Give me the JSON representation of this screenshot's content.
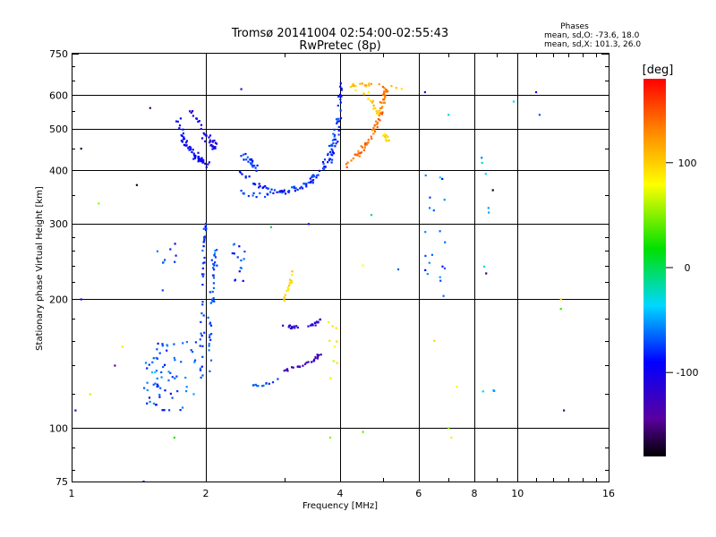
{
  "chart_data": {
    "type": "scatter",
    "title": "Tromsø 20141004 02:54:00-02:55:43",
    "subtitle": "RwPretec (8p)",
    "xlabel": "Frequency [MHz]",
    "ylabel": "Stationary phase Virtual Height [km]",
    "x_scale": "log",
    "y_scale": "log",
    "xlim": [
      1,
      16
    ],
    "ylim": [
      75,
      750
    ],
    "x_ticks": [
      1,
      2,
      4,
      6,
      8,
      10,
      16
    ],
    "x_tick_labels": [
      "1",
      "2",
      "4",
      "6",
      "8",
      "10",
      "16"
    ],
    "y_ticks": [
      75,
      100,
      200,
      300,
      400,
      500,
      600,
      750
    ],
    "y_tick_labels": [
      "75",
      "100",
      "200",
      "300",
      "400",
      "500",
      "600",
      "750"
    ],
    "x_grid_major": [
      2,
      4,
      6,
      8,
      10
    ],
    "y_grid_major": [
      100,
      200,
      300,
      400,
      500,
      600
    ],
    "grid": true,
    "phases_box": {
      "title": "Phases",
      "line_o": "mean, sd,O: -73.6, 18.0",
      "line_x": "mean, sd,X: 101.3, 26.0"
    },
    "colorbar": {
      "label": "[deg]",
      "range": [
        -180,
        180
      ],
      "ticks": [
        100,
        0,
        -100
      ],
      "tick_labels": [
        "100",
        "0",
        "-100"
      ],
      "colormap": "rainbow"
    },
    "clusters": [
      {
        "kind": "curve",
        "pts": [
          [
            1.72,
            550
          ],
          [
            1.76,
            490
          ],
          [
            1.8,
            460
          ],
          [
            1.86,
            440
          ],
          [
            1.92,
            430
          ],
          [
            1.97,
            420
          ],
          [
            2.02,
            410
          ]
        ],
        "phase": -95,
        "n": 60,
        "jx": 0.02,
        "jy": 0.03
      },
      {
        "kind": "curve",
        "pts": [
          [
            1.85,
            560
          ],
          [
            1.92,
            520
          ],
          [
            1.98,
            490
          ],
          [
            2.05,
            470
          ],
          [
            2.1,
            450
          ]
        ],
        "phase": -100,
        "n": 35,
        "jx": 0.015,
        "jy": 0.04
      },
      {
        "kind": "curve",
        "pts": [
          [
            2.4,
            400
          ],
          [
            2.6,
            370
          ],
          [
            2.9,
            355
          ],
          [
            3.2,
            360
          ],
          [
            3.5,
            380
          ],
          [
            3.8,
            420
          ],
          [
            3.95,
            480
          ],
          [
            4.0,
            560
          ],
          [
            4.02,
            640
          ]
        ],
        "phase": -85,
        "n": 90,
        "jx": 0.015,
        "jy": 0.02
      },
      {
        "kind": "curve",
        "pts": [
          [
            2.4,
            355
          ],
          [
            2.7,
            350
          ],
          [
            3.0,
            355
          ],
          [
            3.3,
            370
          ],
          [
            3.6,
            400
          ],
          [
            3.85,
            460
          ],
          [
            3.95,
            540
          ]
        ],
        "phase": -75,
        "n": 60,
        "jx": 0.015,
        "jy": 0.02
      },
      {
        "kind": "curve",
        "pts": [
          [
            2.4,
            440
          ],
          [
            2.5,
            420
          ],
          [
            2.6,
            405
          ]
        ],
        "phase": -80,
        "n": 20,
        "jx": 0.02,
        "jy": 0.04
      },
      {
        "kind": "curve",
        "pts": [
          [
            4.1,
            410
          ],
          [
            4.4,
            440
          ],
          [
            4.7,
            480
          ],
          [
            4.9,
            530
          ],
          [
            5.0,
            580
          ],
          [
            5.05,
            630
          ]
        ],
        "phase": 140,
        "n": 70,
        "jx": 0.02,
        "jy": 0.02
      },
      {
        "kind": "curve",
        "pts": [
          [
            4.3,
            620
          ],
          [
            4.6,
            600
          ],
          [
            4.8,
            560
          ],
          [
            5.0,
            500
          ],
          [
            5.1,
            460
          ]
        ],
        "phase": 95,
        "n": 30,
        "jx": 0.02,
        "jy": 0.03
      },
      {
        "kind": "curve",
        "pts": [
          [
            4.2,
            630
          ],
          [
            4.4,
            640
          ],
          [
            4.6,
            635
          ],
          [
            4.9,
            640
          ],
          [
            5.2,
            630
          ],
          [
            5.5,
            620
          ]
        ],
        "phase": 110,
        "n": 20,
        "jx": 0.02,
        "jy": 0.015
      },
      {
        "kind": "curve",
        "pts": [
          [
            3.0,
            200
          ],
          [
            3.05,
            210
          ],
          [
            3.1,
            220
          ],
          [
            3.12,
            235
          ]
        ],
        "phase": 95,
        "n": 18,
        "jx": 0.008,
        "jy": 0.015
      },
      {
        "kind": "curve",
        "pts": [
          [
            2.95,
            175
          ],
          [
            3.1,
            172
          ],
          [
            3.3,
            172
          ],
          [
            3.5,
            175
          ],
          [
            3.65,
            180
          ]
        ],
        "phase": -115,
        "n": 25,
        "jx": 0.008,
        "jy": 0.012
      },
      {
        "kind": "curve",
        "pts": [
          [
            2.95,
            135
          ],
          [
            3.1,
            138
          ],
          [
            3.3,
            140
          ],
          [
            3.5,
            145
          ],
          [
            3.65,
            150
          ]
        ],
        "phase": -125,
        "n": 25,
        "jx": 0.008,
        "jy": 0.012
      },
      {
        "kind": "curve",
        "pts": [
          [
            2.5,
            125
          ],
          [
            2.7,
            126
          ],
          [
            2.9,
            130
          ]
        ],
        "phase": -70,
        "n": 12,
        "jx": 0.008,
        "jy": 0.01
      },
      {
        "kind": "curve",
        "pts": [
          [
            2.05,
            130
          ],
          [
            2.05,
            180
          ],
          [
            2.08,
            220
          ],
          [
            2.1,
            260
          ]
        ],
        "phase": -70,
        "n": 40,
        "jx": 0.02,
        "jy": 0.05
      },
      {
        "kind": "curve",
        "pts": [
          [
            1.95,
            130
          ],
          [
            1.96,
            170
          ],
          [
            1.97,
            220
          ],
          [
            1.98,
            270
          ],
          [
            2.0,
            310
          ]
        ],
        "phase": -75,
        "n": 40,
        "jx": 0.015,
        "jy": 0.05
      },
      {
        "kind": "cloud",
        "x": [
          1.45,
          1.9
        ],
        "y": [
          110,
          160
        ],
        "phase": -70,
        "n": 70
      },
      {
        "kind": "cloud",
        "x": [
          2.25,
          2.45
        ],
        "y": [
          210,
          270
        ],
        "phase": -75,
        "n": 15
      },
      {
        "kind": "cloud",
        "x": [
          1.55,
          1.75
        ],
        "y": [
          240,
          270
        ],
        "phase": -80,
        "n": 8
      },
      {
        "kind": "cloud",
        "x": [
          3.75,
          3.95
        ],
        "y": [
          130,
          180
        ],
        "phase": 90,
        "n": 10
      },
      {
        "kind": "cloud",
        "x": [
          6.2,
          6.9
        ],
        "y": [
          200,
          400
        ],
        "phase": -60,
        "n": 20
      },
      {
        "kind": "cloud",
        "x": [
          8.3,
          8.9
        ],
        "y": [
          120,
          470
        ],
        "phase": -40,
        "n": 9
      },
      {
        "kind": "scatter",
        "pts": [
          [
            1.05,
            450
          ],
          [
            1.15,
            335
          ],
          [
            1.4,
            370
          ],
          [
            1.5,
            560
          ],
          [
            1.6,
            210
          ],
          [
            1.3,
            155
          ],
          [
            1.25,
            140
          ],
          [
            1.1,
            120
          ],
          [
            1.05,
            200
          ],
          [
            1.02,
            110
          ],
          [
            1.45,
            75
          ],
          [
            1.7,
            95
          ],
          [
            2.4,
            620
          ],
          [
            2.8,
            295
          ],
          [
            3.4,
            300
          ],
          [
            4.5,
            240
          ],
          [
            4.7,
            315
          ],
          [
            5.4,
            235
          ],
          [
            6.2,
            610
          ],
          [
            6.5,
            160
          ],
          [
            7.0,
            540
          ],
          [
            7.3,
            125
          ],
          [
            7.0,
            100
          ],
          [
            7.1,
            95
          ],
          [
            8.5,
            230
          ],
          [
            8.8,
            360
          ],
          [
            9.8,
            580
          ],
          [
            11,
            610
          ],
          [
            11.2,
            540
          ],
          [
            12.5,
            190
          ],
          [
            12.7,
            110
          ],
          [
            12.5,
            200
          ],
          [
            4.5,
            98
          ],
          [
            3.8,
            95
          ]
        ],
        "phase": -50
      }
    ]
  }
}
